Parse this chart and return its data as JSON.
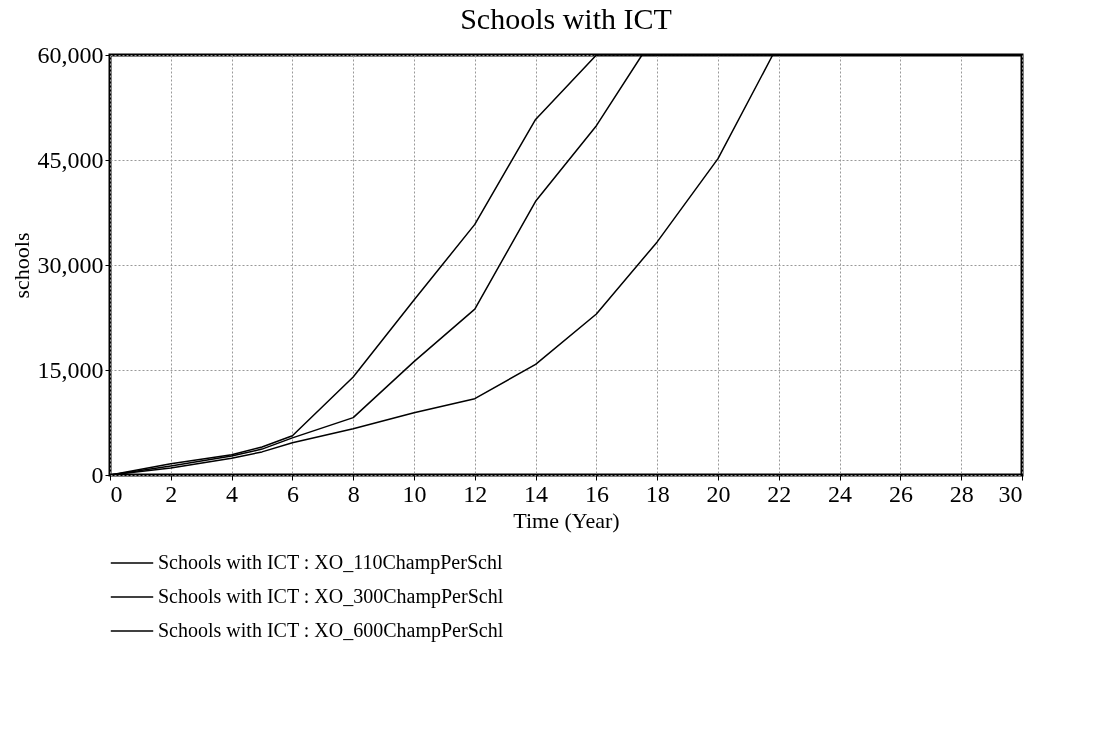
{
  "chart_data": {
    "type": "line",
    "title": "Schools with ICT",
    "xlabel": "Time (Year)",
    "ylabel": "schools",
    "xlim": [
      0,
      30
    ],
    "xticks": [
      0,
      2,
      4,
      6,
      8,
      10,
      12,
      14,
      16,
      18,
      20,
      22,
      24,
      26,
      28,
      30
    ],
    "ylim": [
      0,
      60000
    ],
    "yticks": [
      0,
      {
        "value": 15000,
        "label": "15,000"
      },
      {
        "value": 30000,
        "label": "30,000"
      },
      {
        "value": 45000,
        "label": "45,000"
      },
      {
        "value": 60000,
        "label": "60,000"
      }
    ],
    "grid": true,
    "legend": "bottom",
    "series": [
      {
        "name": "Schools with ICT : XO_110ChampPerSchl",
        "color": "#000000",
        "x": [
          0,
          2,
          4,
          5,
          6,
          8,
          10,
          12,
          14,
          16,
          18,
          20,
          21.8,
          30
        ],
        "values": [
          0,
          1000,
          2400,
          3300,
          4600,
          6600,
          8900,
          10900,
          15800,
          23000,
          33300,
          45200,
          60000,
          60000
        ]
      },
      {
        "name": "Schools with ICT : XO_300ChampPerSchl",
        "color": "#000000",
        "x": [
          0,
          2,
          4,
          5,
          6,
          8,
          10,
          12,
          14,
          16,
          17.5,
          30
        ],
        "values": [
          0,
          1300,
          2700,
          3700,
          5300,
          8200,
          16200,
          23700,
          39100,
          49900,
          60000,
          60000
        ]
      },
      {
        "name": "Schools with ICT : XO_600ChampPerSchl",
        "color": "#000000",
        "x": [
          0,
          2,
          4,
          5,
          6,
          8,
          10,
          12,
          14,
          16,
          30
        ],
        "values": [
          0,
          1600,
          2900,
          4000,
          5600,
          14000,
          25000,
          35800,
          50800,
          60000,
          60000
        ]
      }
    ]
  }
}
